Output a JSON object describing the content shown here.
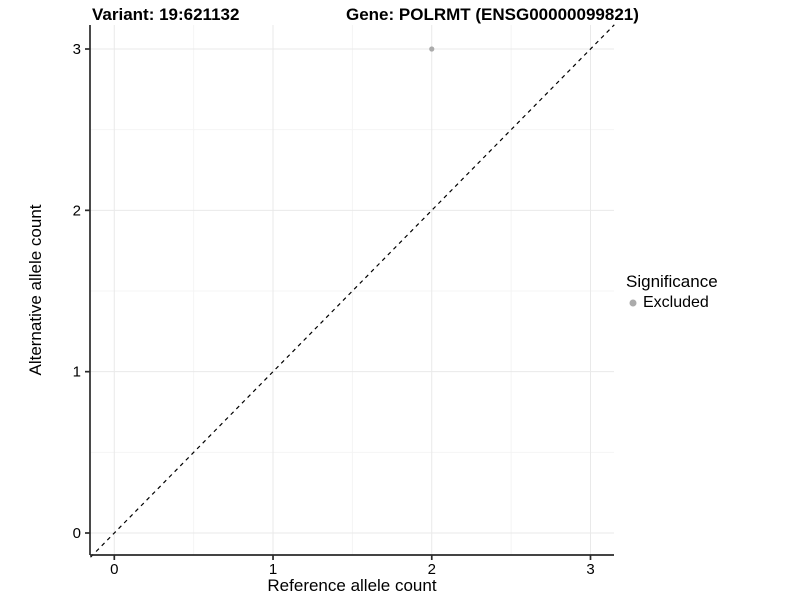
{
  "titles": {
    "left": "Variant: 19:621132",
    "right": "Gene: POLRMT (ENSG00000099821)"
  },
  "axes": {
    "x_label": "Reference allele count",
    "y_label": "Alternative allele count"
  },
  "legend": {
    "title": "Significance",
    "items": [
      {
        "label": "Excluded",
        "color": "#ababab",
        "marker": "circle"
      }
    ]
  },
  "chart_data": {
    "type": "scatter",
    "title": "Variant: 19:621132 | Gene: POLRMT (ENSG00000099821)",
    "xlabel": "Reference allele count",
    "ylabel": "Alternative allele count",
    "x": {
      "ticks": [
        0,
        1,
        2,
        3
      ],
      "minor_ticks": [
        0.5,
        1.5,
        2.5
      ],
      "range": [
        -0.15,
        3.15
      ]
    },
    "y": {
      "ticks": [
        0,
        1,
        2,
        3
      ],
      "minor_ticks": [
        0.5,
        1.5,
        2.5
      ],
      "range": [
        -0.15,
        3.15
      ]
    },
    "series": [
      {
        "name": "Excluded",
        "color": "#ababab",
        "points": [
          {
            "x": 2,
            "y": 3
          }
        ]
      }
    ],
    "reference_line": {
      "slope": 1,
      "intercept": 0,
      "style": "dashed",
      "color": "#000000"
    },
    "grid": {
      "major_color": "#e9e9e9",
      "minor_color": "#f4f4f4",
      "grid_on": true
    },
    "axis_line_color": "#2a2a2a",
    "legend_position": "right"
  }
}
